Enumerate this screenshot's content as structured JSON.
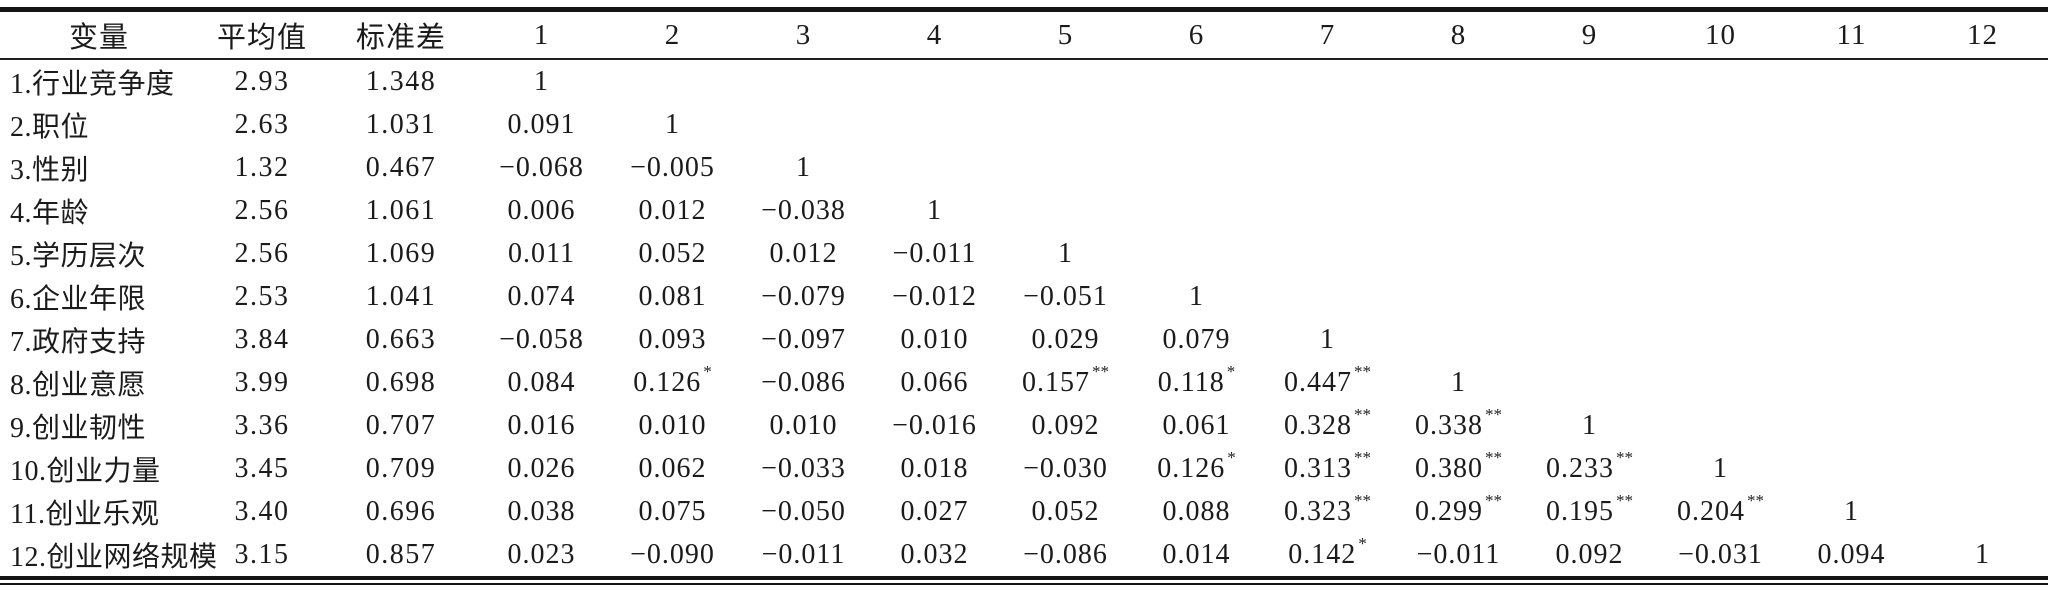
{
  "table": {
    "kind": "correlation-matrix",
    "columns": [
      "变量",
      "平均值",
      "标准差",
      "1",
      "2",
      "3",
      "4",
      "5",
      "6",
      "7",
      "8",
      "9",
      "10",
      "11",
      "12"
    ],
    "rows": [
      {
        "label": "1.行业竞争度",
        "mean": "2.93",
        "sd": "1.348",
        "corr": [
          "1"
        ]
      },
      {
        "label": "2.职位",
        "mean": "2.63",
        "sd": "1.031",
        "corr": [
          "0.091",
          "1"
        ]
      },
      {
        "label": "3.性别",
        "mean": "1.32",
        "sd": "0.467",
        "corr": [
          "−0.068",
          "−0.005",
          "1"
        ]
      },
      {
        "label": "4.年龄",
        "mean": "2.56",
        "sd": "1.061",
        "corr": [
          "0.006",
          "0.012",
          "−0.038",
          "1"
        ]
      },
      {
        "label": "5.学历层次",
        "mean": "2.56",
        "sd": "1.069",
        "corr": [
          "0.011",
          "0.052",
          "0.012",
          "−0.011",
          "1"
        ]
      },
      {
        "label": "6.企业年限",
        "mean": "2.53",
        "sd": "1.041",
        "corr": [
          "0.074",
          "0.081",
          "−0.079",
          "−0.012",
          "−0.051",
          "1"
        ]
      },
      {
        "label": "7.政府支持",
        "mean": "3.84",
        "sd": "0.663",
        "corr": [
          "−0.058",
          "0.093",
          "−0.097",
          "0.010",
          "0.029",
          "0.079",
          "1"
        ]
      },
      {
        "label": "8.创业意愿",
        "mean": "3.99",
        "sd": "0.698",
        "corr": [
          "0.084",
          "0.126*",
          "−0.086",
          "0.066",
          "0.157**",
          "0.118*",
          "0.447**",
          "1"
        ]
      },
      {
        "label": "9.创业韧性",
        "mean": "3.36",
        "sd": "0.707",
        "corr": [
          "0.016",
          "0.010",
          "0.010",
          "−0.016",
          "0.092",
          "0.061",
          "0.328**",
          "0.338**",
          "1"
        ]
      },
      {
        "label": "10.创业力量",
        "mean": "3.45",
        "sd": "0.709",
        "corr": [
          "0.026",
          "0.062",
          "−0.033",
          "0.018",
          "−0.030",
          "0.126*",
          "0.313**",
          "0.380**",
          "0.233**",
          "1"
        ]
      },
      {
        "label": "11.创业乐观",
        "mean": "3.40",
        "sd": "0.696",
        "corr": [
          "0.038",
          "0.075",
          "−0.050",
          "0.027",
          "0.052",
          "0.088",
          "0.323**",
          "0.299**",
          "0.195**",
          "0.204**",
          "1"
        ]
      },
      {
        "label": "12.创业网络规模",
        "mean": "3.15",
        "sd": "0.857",
        "corr": [
          "0.023",
          "−0.090",
          "−0.011",
          "0.032",
          "−0.086",
          "0.014",
          "0.142*",
          "−0.011",
          "0.092",
          "−0.031",
          "0.094",
          "1"
        ]
      }
    ]
  }
}
